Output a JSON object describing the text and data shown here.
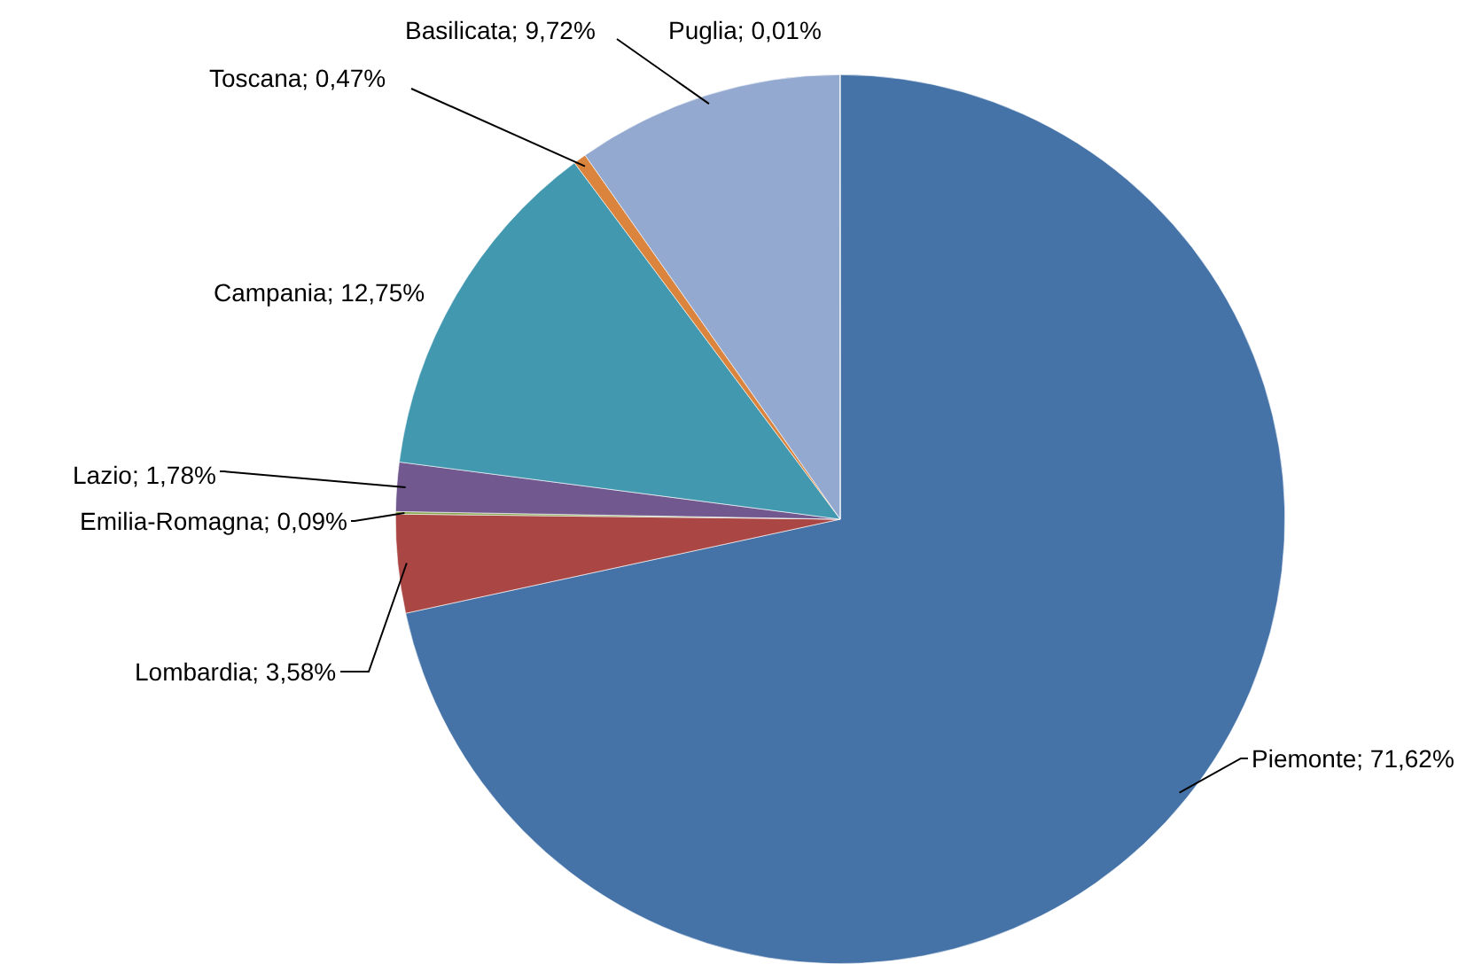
{
  "chart_data": {
    "type": "pie",
    "categories": [
      "Piemonte",
      "Lombardia",
      "Emilia-Romagna",
      "Lazio",
      "Campania",
      "Toscana",
      "Basilicata",
      "Puglia"
    ],
    "values": [
      71.62,
      3.58,
      0.09,
      1.78,
      12.75,
      0.47,
      9.72,
      0.01
    ],
    "value_labels": [
      "71,62%",
      "3,58%",
      "0,09%",
      "1,78%",
      "12,75%",
      "0,47%",
      "9,72%",
      "0,01%"
    ],
    "colors": [
      "#4572a7",
      "#aa4643",
      "#89a54e",
      "#71588f",
      "#4198af",
      "#db843d",
      "#93a9cf",
      "#b9cd96"
    ],
    "legend": false
  }
}
